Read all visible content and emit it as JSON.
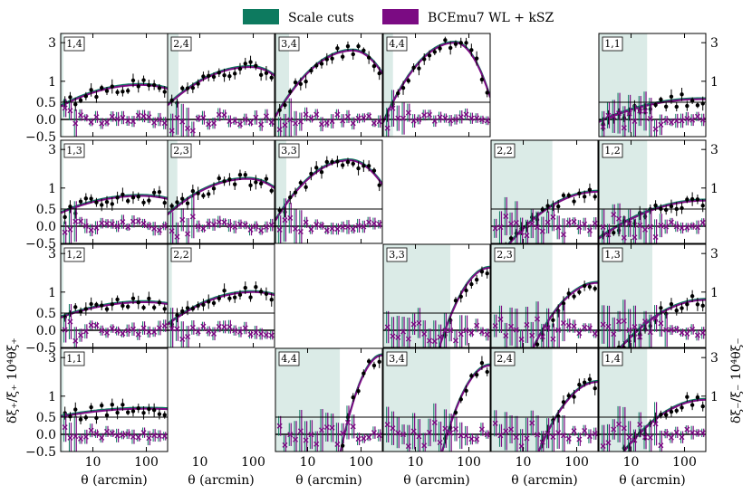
{
  "chart_data": {
    "type": "scatter",
    "legend": [
      {
        "name": "Scale cuts",
        "color": "#0d7a5f"
      },
      {
        "name": "BCEmu7 WL + kSZ",
        "color": "#7b0b83"
      }
    ],
    "xlabel": "θ (arcmin)",
    "ylabel_left": "δξ₊/ξ₊  10⁴θξ₊",
    "ylabel_right": "δξ₋/ξ₋  10⁴θξ₋",
    "xscale": "log",
    "xlim": [
      2.5,
      250
    ],
    "xticks": [
      10,
      100
    ],
    "xtick_labels": [
      "10",
      "100"
    ],
    "top_yticks": [
      1,
      3
    ],
    "top_ytick_labels": [
      "1",
      "3"
    ],
    "bottom_yticks": [
      0.5,
      0.0,
      -0.5
    ],
    "bottom_ytick_labels": [
      "0.5",
      "0.0",
      "−0.5"
    ],
    "bottom_ylim": [
      -0.5,
      0.5
    ],
    "colors": {
      "scale_cut": "#0d7a5f",
      "model": "#7b0b83",
      "data": "#000000"
    },
    "panels": [
      {
        "label": "1,4",
        "row": 0,
        "col": 0,
        "cut": 2.8,
        "ylim": [
          0.55,
          3.9
        ],
        "amp": 0.9,
        "peak": 80,
        "decay": 0.15,
        "fall": 0.25
      },
      {
        "label": "2,4",
        "row": 0,
        "col": 1,
        "cut": 4.0,
        "ylim": [
          0.55,
          3.9
        ],
        "amp": 1.5,
        "peak": 90,
        "decay": 0.25,
        "fall": 0.7
      },
      {
        "label": "3,4",
        "row": 0,
        "col": 2,
        "cut": 4.5,
        "ylim": [
          0.55,
          3.9
        ],
        "amp": 2.4,
        "peak": 70,
        "decay": 0.5,
        "fall": 1.2
      },
      {
        "label": "4,4",
        "row": 0,
        "col": 3,
        "cut": 3.8,
        "ylim": [
          0.55,
          3.9
        ],
        "amp": 3.0,
        "peak": 55,
        "decay": 0.7,
        "fall": 2.0
      },
      {
        "label": "1,1",
        "row": 0,
        "col": 5,
        "cut": 20,
        "ylim": [
          0.55,
          3.9
        ],
        "amp": 0.6,
        "peak": 200,
        "decay": 0.1,
        "fall": 0.0
      },
      {
        "label": "1,3",
        "row": 1,
        "col": 0,
        "cut": 2.8,
        "ylim": [
          0.55,
          3.9
        ],
        "amp": 0.8,
        "peak": 80,
        "decay": 0.12,
        "fall": 0.2
      },
      {
        "label": "2,3",
        "row": 1,
        "col": 1,
        "cut": 3.8,
        "ylim": [
          0.55,
          3.9
        ],
        "amp": 1.3,
        "peak": 80,
        "decay": 0.25,
        "fall": 0.6
      },
      {
        "label": "3,3",
        "row": 1,
        "col": 2,
        "cut": 4.0,
        "ylim": [
          0.55,
          3.9
        ],
        "amp": 2.2,
        "peak": 60,
        "decay": 0.5,
        "fall": 1.0
      },
      {
        "label": "2,2",
        "row": 1,
        "col": 4,
        "cut": 35,
        "ylim": [
          0.55,
          3.9
        ],
        "amp": 0.9,
        "peak": 250,
        "decay": 0.3,
        "fall": 0.0
      },
      {
        "label": "1,2",
        "row": 1,
        "col": 5,
        "cut": 20,
        "ylim": [
          0.55,
          3.9
        ],
        "amp": 0.7,
        "peak": 250,
        "decay": 0.15,
        "fall": 0.0
      },
      {
        "label": "1,2",
        "row": 2,
        "col": 0,
        "cut": 2.8,
        "ylim": [
          0.55,
          3.9
        ],
        "amp": 0.75,
        "peak": 90,
        "decay": 0.1,
        "fall": 0.15
      },
      {
        "label": "2,2",
        "row": 2,
        "col": 1,
        "cut": 3.0,
        "ylim": [
          0.55,
          3.9
        ],
        "amp": 1.0,
        "peak": 100,
        "decay": 0.2,
        "fall": 0.3
      },
      {
        "label": "3,3",
        "row": 2,
        "col": 3,
        "cut": 45,
        "ylim": [
          0.55,
          3.9
        ],
        "amp": 2.0,
        "peak": 250,
        "decay": 1.4,
        "fall": 0.0
      },
      {
        "label": "2,3",
        "row": 2,
        "col": 4,
        "cut": 35,
        "ylim": [
          0.55,
          3.9
        ],
        "amp": 1.3,
        "peak": 250,
        "decay": 0.7,
        "fall": 0.0
      },
      {
        "label": "1,3",
        "row": 2,
        "col": 5,
        "cut": 25,
        "ylim": [
          0.55,
          3.9
        ],
        "amp": 0.8,
        "peak": 250,
        "decay": 0.3,
        "fall": 0.0
      },
      {
        "label": "1,1",
        "row": 3,
        "col": 0,
        "cut": 2.8,
        "ylim": [
          0.55,
          3.9
        ],
        "amp": 0.7,
        "peak": 100,
        "decay": 0.05,
        "fall": 0.05
      },
      {
        "label": "4,4",
        "row": 3,
        "col": 2,
        "cut": 40,
        "ylim": [
          0.55,
          3.9
        ],
        "amp": 3.2,
        "peak": 250,
        "decay": 2.5,
        "fall": 0.0
      },
      {
        "label": "3,4",
        "row": 3,
        "col": 3,
        "cut": 45,
        "ylim": [
          0.55,
          3.9
        ],
        "amp": 2.4,
        "peak": 250,
        "decay": 1.7,
        "fall": 0.0
      },
      {
        "label": "2,4",
        "row": 3,
        "col": 4,
        "cut": 35,
        "ylim": [
          0.55,
          3.9
        ],
        "amp": 1.5,
        "peak": 250,
        "decay": 0.9,
        "fall": 0.0
      },
      {
        "label": "1,4",
        "row": 3,
        "col": 5,
        "cut": 20,
        "ylim": [
          0.55,
          3.9
        ],
        "amp": 0.9,
        "peak": 250,
        "decay": 0.35,
        "fall": 0.0
      }
    ]
  }
}
